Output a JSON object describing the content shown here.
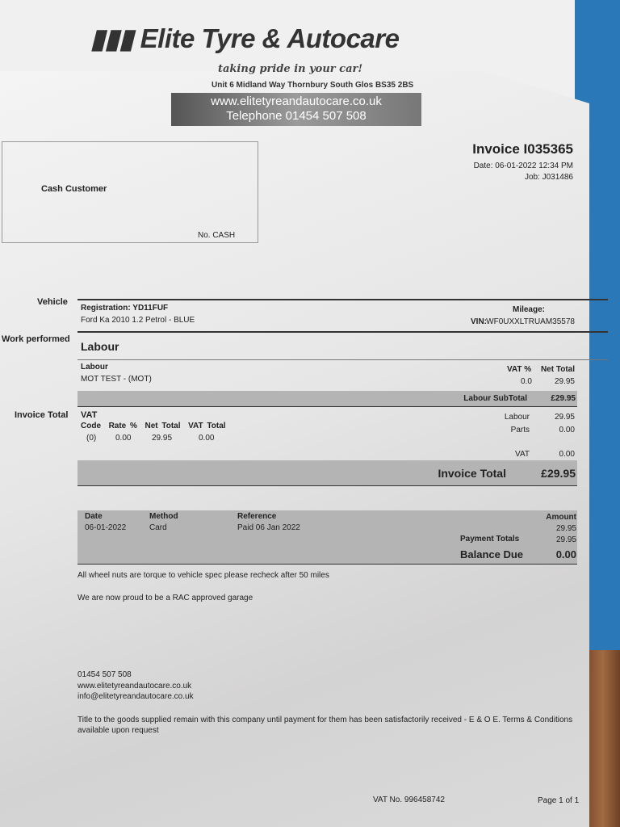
{
  "company": {
    "name": "Elite Tyre & Autocare",
    "tagline": "taking pride in your car!",
    "address": "Unit 6 Midland Way Thornbury South Glos BS35 2BS",
    "website": "www.elitetyreandautocare.co.uk",
    "telephone": "Telephone 01454 507 508"
  },
  "invoice": {
    "title": "Invoice I035365",
    "date": "Date: 06-01-2022 12:34 PM",
    "job": "Job: J031486"
  },
  "customer": {
    "name": "Cash Customer",
    "number": "No. CASH"
  },
  "labels": {
    "vehicle": "Vehicle",
    "work_performed": "Work performed",
    "invoice_total": "Invoice Total"
  },
  "vehicle": {
    "registration": "Registration: YD11FUF",
    "description": "Ford Ka  2010 1.2 Petrol - BLUE",
    "mileage_label": "Mileage:",
    "vin_label": "VIN:",
    "vin": "WF0UXXLTRUAM35578"
  },
  "labour": {
    "heading": "Labour",
    "col_item": "Labour",
    "col_vat": "VAT %",
    "col_net": "Net Total",
    "items": [
      {
        "desc": "MOT TEST - (MOT)",
        "vat": "0.0",
        "net": "29.95"
      }
    ],
    "subtotal_label": "Labour SubTotal",
    "subtotal": "£29.95"
  },
  "vat": {
    "heading": "VAT",
    "headers": [
      "Code",
      "Rate %",
      "Net Total",
      "VAT Total"
    ],
    "row": [
      "(0)",
      "0.00",
      "29.95",
      "0.00"
    ]
  },
  "totals": {
    "labour_label": "Labour",
    "labour": "29.95",
    "parts_label": "Parts",
    "parts": "0.00",
    "vat_label": "VAT",
    "vat": "0.00",
    "invoice_total_label": "Invoice Total",
    "invoice_total": "£29.95"
  },
  "payment": {
    "headers": [
      "Date",
      "Method",
      "Reference",
      "Amount"
    ],
    "row": [
      "06-01-2022",
      "Card",
      "Paid 06 Jan 2022",
      "29.95"
    ],
    "totals_label": "Payment Totals",
    "totals": "29.95",
    "balance_label": "Balance Due",
    "balance": "0.00"
  },
  "notes": [
    "All wheel nuts are torque to vehicle spec please recheck after 50 miles",
    "We are now proud to be a RAC approved garage"
  ],
  "footer": {
    "phone": "01454 507 508",
    "website": "www.elitetyreandautocare.co.uk",
    "email": "info@elitetyreandautocare.co.uk",
    "terms": "Title to the goods supplied remain with this company until payment for them has been satisfactorily received - E & O E. Terms & Conditions available upon request",
    "vat_no": "VAT No.  996458742",
    "page": "Page 1 of 1"
  }
}
